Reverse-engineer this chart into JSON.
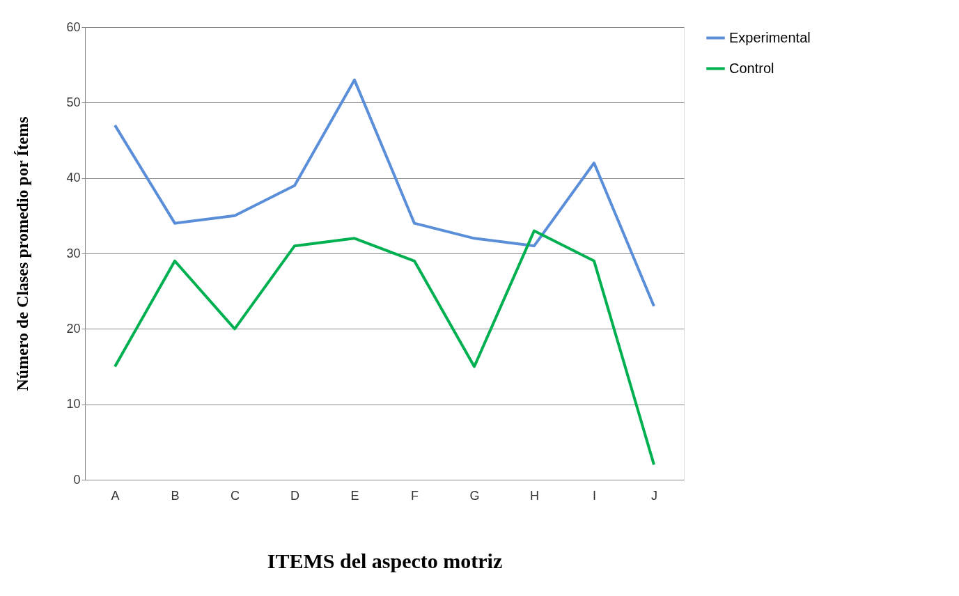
{
  "chart_data": {
    "type": "line",
    "xlabel": "ITEMS del aspecto motriz",
    "ylabel": "Número de Clases promedio por Ítems",
    "categories": [
      "A",
      "B",
      "C",
      "D",
      "E",
      "F",
      "G",
      "H",
      "I",
      "J"
    ],
    "series": [
      {
        "name": "Experimental",
        "color": "#5a8ed8",
        "values": [
          47,
          34,
          35,
          39,
          53,
          34,
          32,
          31,
          42,
          23
        ]
      },
      {
        "name": "Control",
        "color": "#00b050",
        "values": [
          15,
          29,
          20,
          31,
          32,
          29,
          15,
          33,
          29,
          2
        ]
      }
    ],
    "ylim": [
      0,
      60
    ],
    "yticks": [
      0,
      10,
      20,
      30,
      40,
      50,
      60
    ],
    "grid": "y",
    "legend": "top right",
    "marker": "none",
    "line_style": "solid"
  }
}
